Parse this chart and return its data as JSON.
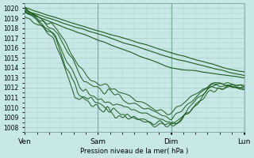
{
  "bg_color": "#c8e8e8",
  "grid_color": "#a0c8b8",
  "line_color": "#1a5c1a",
  "ylabel": "Pression niveau de la mer( hPa )",
  "ylim": [
    1007.5,
    1020.5
  ],
  "yticks": [
    1008,
    1009,
    1010,
    1011,
    1012,
    1013,
    1014,
    1015,
    1016,
    1017,
    1018,
    1019,
    1020
  ],
  "xtick_labels": [
    "Ven",
    "Sam",
    "Dim",
    "Lun"
  ],
  "xtick_positions": [
    0,
    0.333,
    0.667,
    1.0
  ],
  "n": 200
}
